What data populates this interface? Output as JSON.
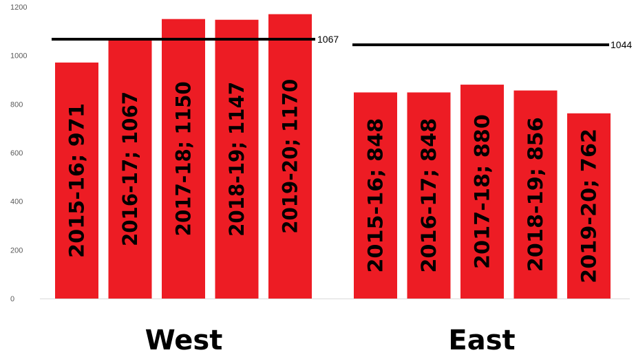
{
  "chart_data": {
    "type": "bar",
    "ylim": [
      0,
      1200
    ],
    "yticks": [
      0,
      200,
      400,
      600,
      800,
      1000,
      1200
    ],
    "groups": [
      {
        "name": "West",
        "categories": [
          "2015-16",
          "2016-17",
          "2017-18",
          "2018-19",
          "2019-20"
        ],
        "values": [
          971,
          1067,
          1150,
          1147,
          1170
        ],
        "labels": [
          "2015-16; 971",
          "2016-17; 1067",
          "2017-18; 1150",
          "2018-19; 1147",
          "2019-20; 1170"
        ],
        "reference_line": 1067
      },
      {
        "name": "East",
        "categories": [
          "2015-16",
          "2016-17",
          "2017-18",
          "2018-19",
          "2019-20"
        ],
        "values": [
          848,
          848,
          880,
          856,
          762
        ],
        "labels": [
          "2015-16; 848",
          "2016-17; 848",
          "2017-18; 880",
          "2018-19; 856",
          "2019-20; 762"
        ],
        "reference_line": 1044
      }
    ],
    "bar_color": "#ed1c24",
    "reference_line_color": "#000000",
    "grid": false
  }
}
